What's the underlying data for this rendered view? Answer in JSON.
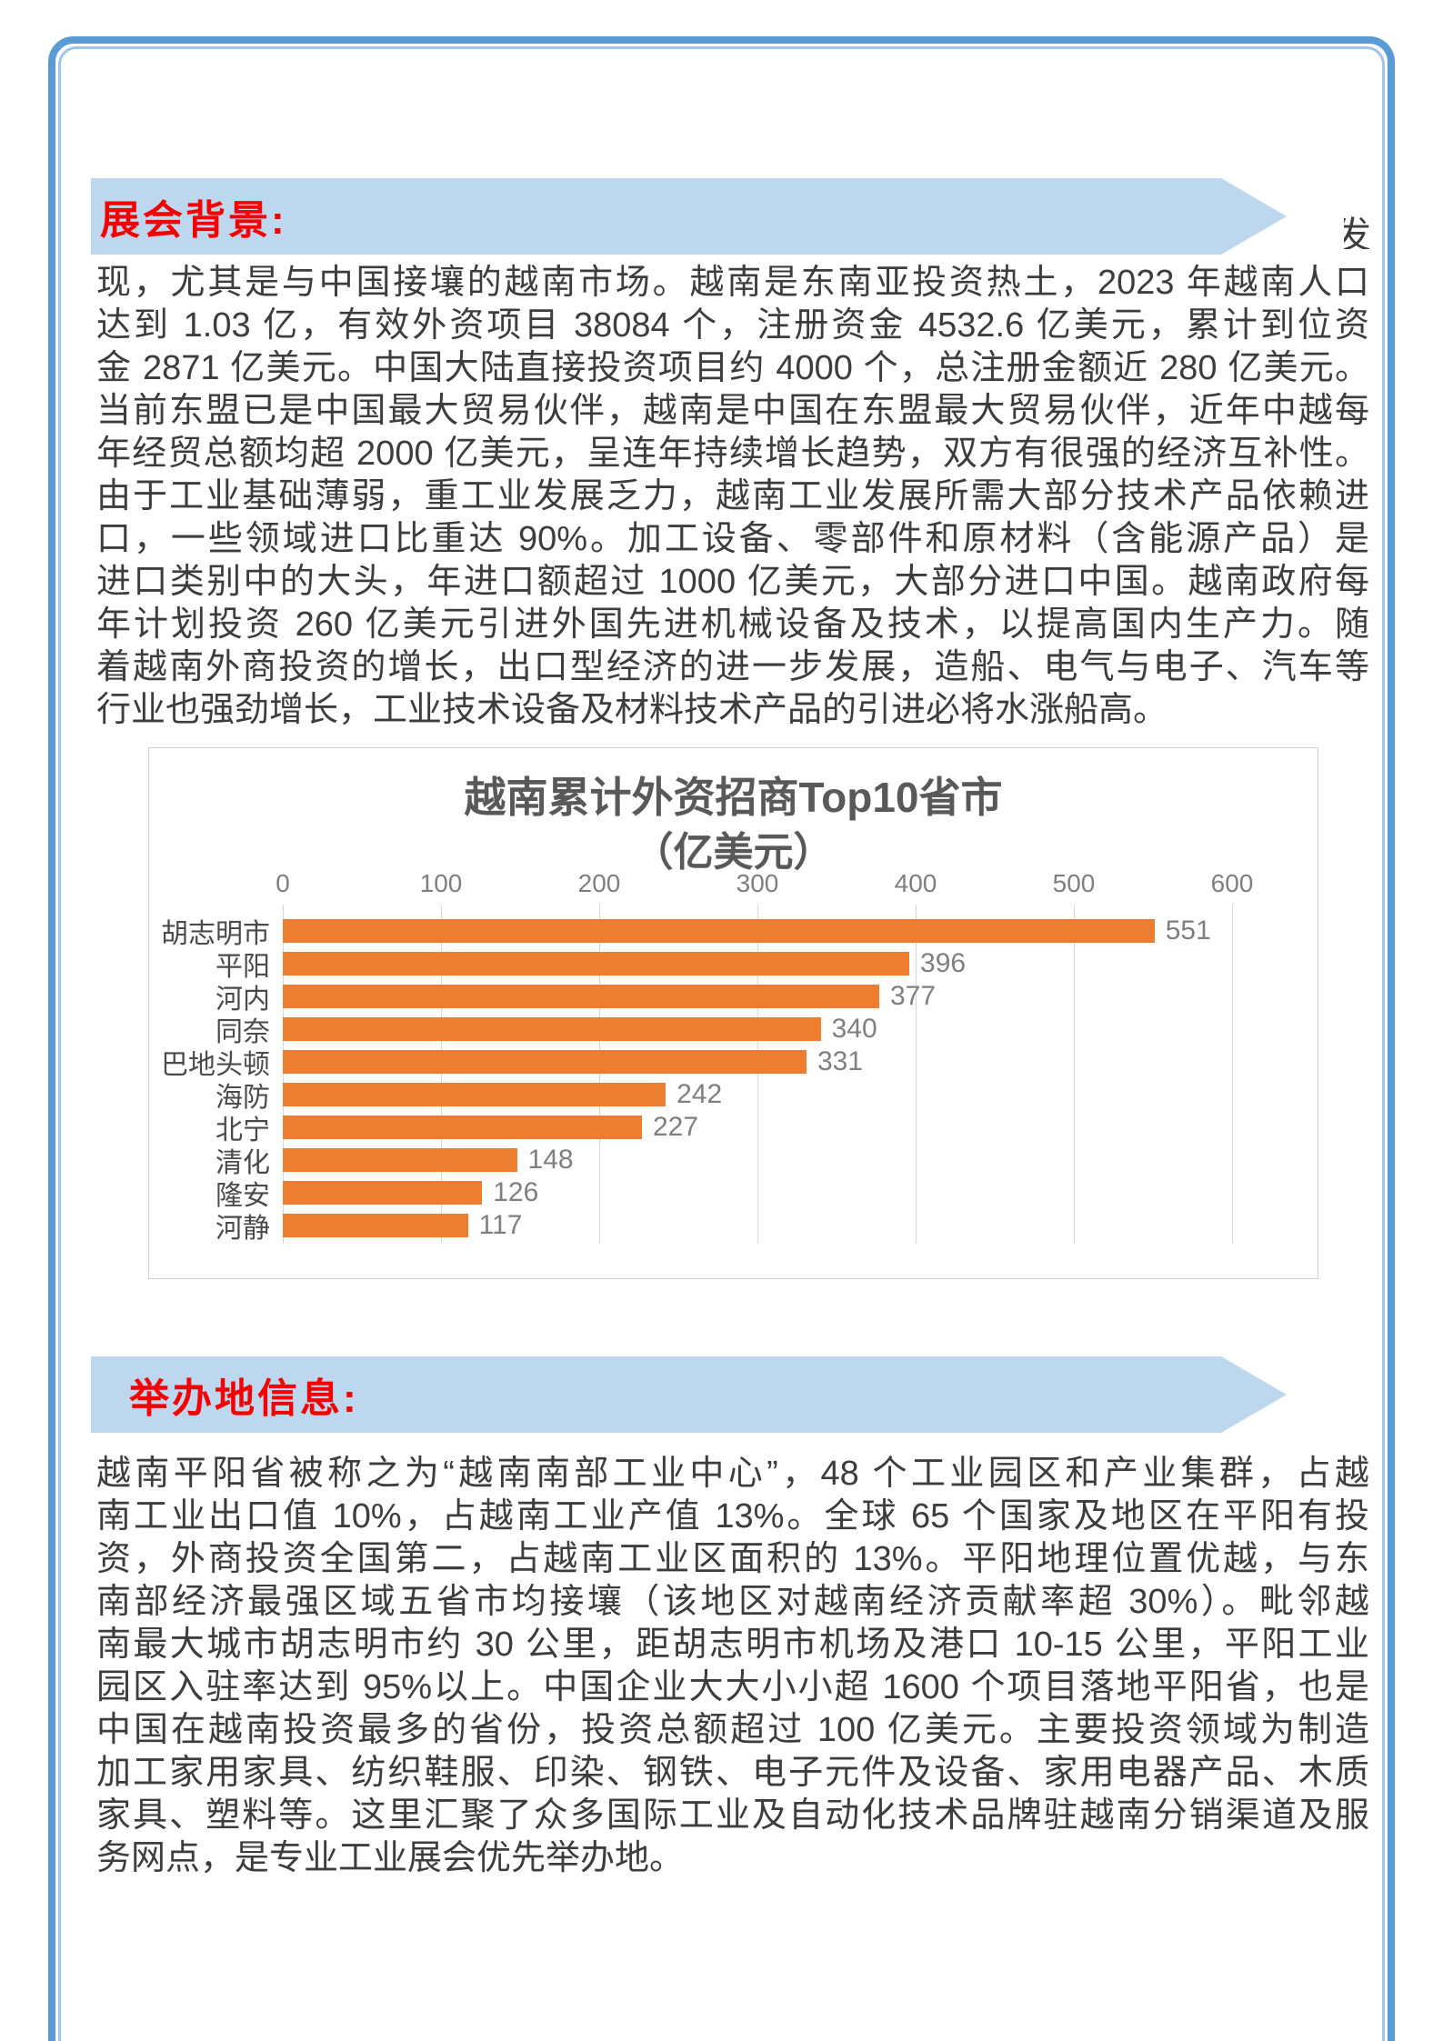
{
  "colors": {
    "frame_outer": "#5b9bd5",
    "frame_inner": "#9fc5e8",
    "banner_background": "#bdd7ee",
    "banner_text": "#f40000",
    "body_text": "#3d3d3d",
    "bar_color": "#ed7d31",
    "chart_label": "#595959",
    "chart_tick": "#7f7f7f"
  },
  "sections": {
    "background": {
      "banner_label": "展会背景:",
      "hidden_text_fragment": "发",
      "paragraph_lines": [
        "现，尤其是与中国接壤的越南市场。越南是东南亚投资热土，2023 年越南人口",
        "达到 1.03 亿，有效外资项目 38084 个，注册资金 4532.6 亿美元，累计到位资",
        "金 2871 亿美元。中国大陆直接投资项目约 4000 个，总注册金额近 280 亿美元。",
        "当前东盟已是中国最大贸易伙伴，越南是中国在东盟最大贸易伙伴，近年中越每",
        "年经贸总额均超 2000 亿美元，呈连年持续增长趋势，双方有很强的经济互补性。",
        "由于工业基础薄弱，重工业发展乏力，越南工业发展所需大部分技术产品依赖进",
        "口，一些领域进口比重达 90%。加工设备、零部件和原材料（含能源产品）是",
        "进口类别中的大头，年进口额超过 1000 亿美元，大部分进口中国。越南政府每",
        "年计划投资 260 亿美元引进外国先进机械设备及技术，以提高国内生产力。随",
        "着越南外商投资的增长，出口型经济的进一步发展，造船、电气与电子、汽车等",
        "行业也强劲增长，工业技术设备及材料技术产品的引进必将水涨船高。"
      ]
    },
    "venue": {
      "banner_label": "举办地信息:",
      "paragraph_lines": [
        "越南平阳省被称之为“越南南部工业中心”，48 个工业园区和产业集群，占越",
        "南工业出口值 10%，占越南工业产值 13%。全球 65 个国家及地区在平阳有投",
        "资，外商投资全国第二，占越南工业区面积的 13%。平阳地理位置优越，与东",
        "南部经济最强区域五省市均接壤（该地区对越南经济贡献率超 30%）。毗邻越",
        "南最大城市胡志明市约 30 公里，距胡志明市机场及港口 10-15 公里，平阳工业",
        "园区入驻率达到 95%以上。中国企业大大小小超 1600 个项目落地平阳省，也是",
        "中国在越南投资最多的省份，投资总额超过 100 亿美元。主要投资领域为制造",
        "加工家用家具、纺织鞋服、印染、钢铁、电子元件及设备、家用电器产品、木质",
        "家具、塑料等。这里汇聚了众多国际工业及自动化技术品牌驻越南分销渠道及服",
        "务网点，是专业工业展会优先举办地。"
      ]
    }
  },
  "chart_data": {
    "type": "bar",
    "orientation": "horizontal",
    "title": "越南累计外资招商Top10省市",
    "subtitle": "（亿美元）",
    "categories": [
      "胡志明市",
      "平阳",
      "河内",
      "同奈",
      "巴地头顿",
      "海防",
      "北宁",
      "清化",
      "隆安",
      "河静"
    ],
    "values": [
      551,
      396,
      377,
      340,
      331,
      242,
      227,
      148,
      126,
      117
    ],
    "xlabel": "",
    "ylabel": "",
    "xlim": [
      0,
      600
    ],
    "xticks": [
      0,
      100,
      200,
      300,
      400,
      500,
      600
    ],
    "grid": true,
    "legend_position": "none",
    "bar_color": "#ed7d31"
  }
}
